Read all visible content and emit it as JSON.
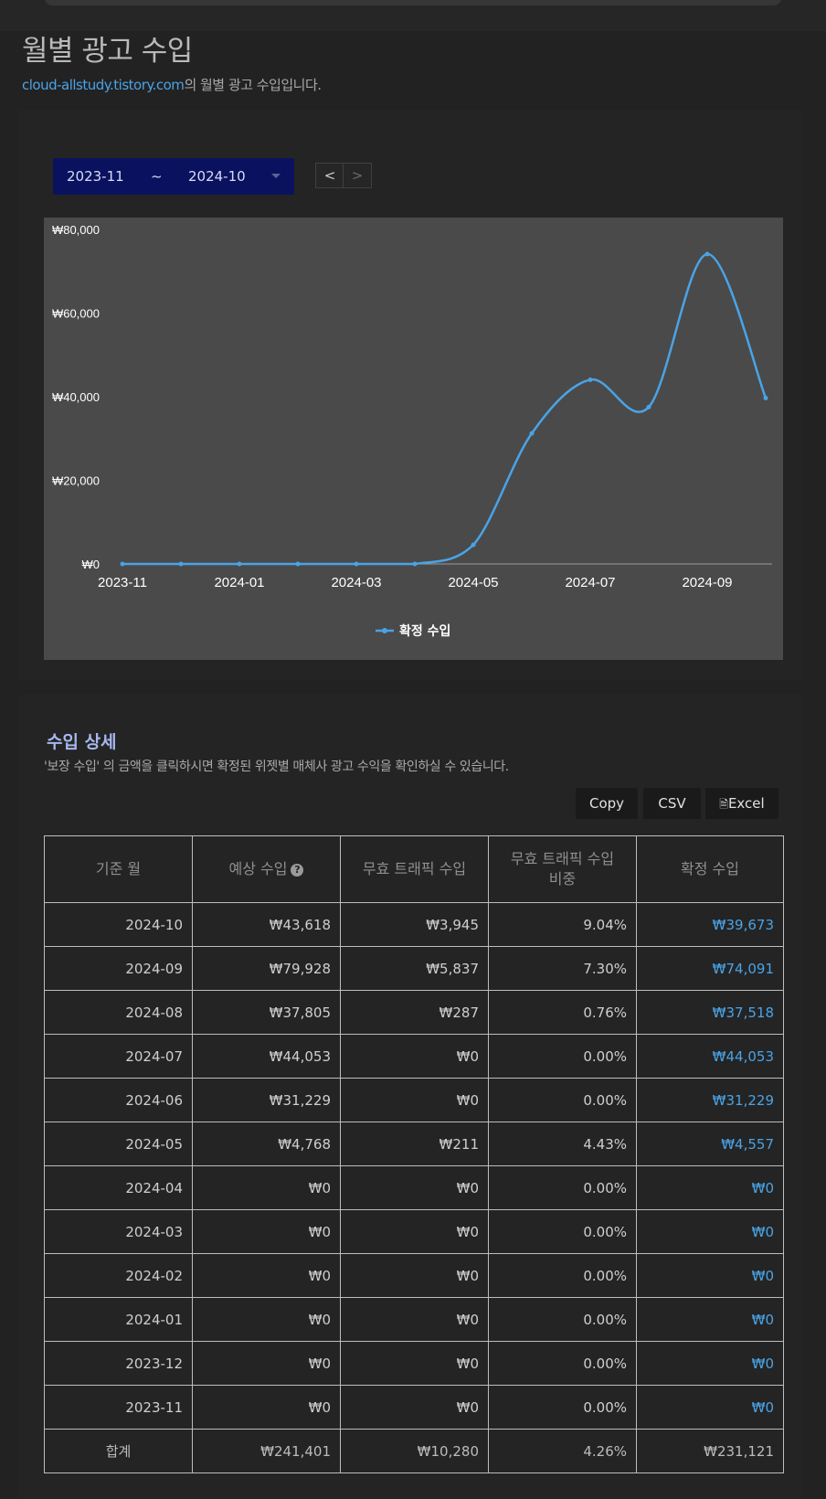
{
  "page": {
    "title": "월별 광고 수입",
    "subtitle_domain": "cloud-allstudy.tistory.com",
    "subtitle_rest": "의 월별 광고 수입입니다."
  },
  "range": {
    "from": "2023-11",
    "separator": "~",
    "to": "2024-10"
  },
  "nav": {
    "prev": "<",
    "next": ">"
  },
  "chart_data": {
    "type": "line",
    "x": [
      "2023-11",
      "2023-12",
      "2024-01",
      "2024-02",
      "2024-03",
      "2024-04",
      "2024-05",
      "2024-06",
      "2024-07",
      "2024-08",
      "2024-09",
      "2024-10"
    ],
    "x_tick_labels": [
      "2023-11",
      "2024-01",
      "2024-03",
      "2024-05",
      "2024-07",
      "2024-09"
    ],
    "y_tick_labels": [
      "₩80,000",
      "₩60,000",
      "₩40,000",
      "₩20,000",
      "₩0"
    ],
    "ylim": [
      0,
      80000
    ],
    "series": [
      {
        "name": "확정 수입",
        "values": [
          0,
          0,
          0,
          0,
          0,
          0,
          4557,
          31229,
          44053,
          37518,
          74091,
          39673
        ],
        "color": "#4aa3e6"
      }
    ],
    "legend_position": "bottom",
    "grid": false,
    "smooth": true
  },
  "detail": {
    "title": "수입 상세",
    "description": "'보장 수입' 의 금액을 클릭하시면 확정된 위젯별 매체사 광고 수익을 확인하실 수 있습니다.",
    "buttons": {
      "copy": "Copy",
      "csv": "CSV",
      "excel": "Excel"
    },
    "headers": [
      "기준 월",
      "예상 수입",
      "무효 트래픽 수입",
      "무효 트래픽 수입\n비중",
      "확정 수입"
    ],
    "rows": [
      [
        "2024-10",
        "₩43,618",
        "₩3,945",
        "9.04%",
        "₩39,673"
      ],
      [
        "2024-09",
        "₩79,928",
        "₩5,837",
        "7.30%",
        "₩74,091"
      ],
      [
        "2024-08",
        "₩37,805",
        "₩287",
        "0.76%",
        "₩37,518"
      ],
      [
        "2024-07",
        "₩44,053",
        "₩0",
        "0.00%",
        "₩44,053"
      ],
      [
        "2024-06",
        "₩31,229",
        "₩0",
        "0.00%",
        "₩31,229"
      ],
      [
        "2024-05",
        "₩4,768",
        "₩211",
        "4.43%",
        "₩4,557"
      ],
      [
        "2024-04",
        "₩0",
        "₩0",
        "0.00%",
        "₩0"
      ],
      [
        "2024-03",
        "₩0",
        "₩0",
        "0.00%",
        "₩0"
      ],
      [
        "2024-02",
        "₩0",
        "₩0",
        "0.00%",
        "₩0"
      ],
      [
        "2024-01",
        "₩0",
        "₩0",
        "0.00%",
        "₩0"
      ],
      [
        "2023-12",
        "₩0",
        "₩0",
        "0.00%",
        "₩0"
      ],
      [
        "2023-11",
        "₩0",
        "₩0",
        "0.00%",
        "₩0"
      ]
    ],
    "total": [
      "합계",
      "₩241,401",
      "₩10,280",
      "4.26%",
      "₩231,121"
    ]
  },
  "colors": {
    "link": "#4aa3e6",
    "range_bg": "#0a1260",
    "chart_bg": "#4a4a4a"
  }
}
